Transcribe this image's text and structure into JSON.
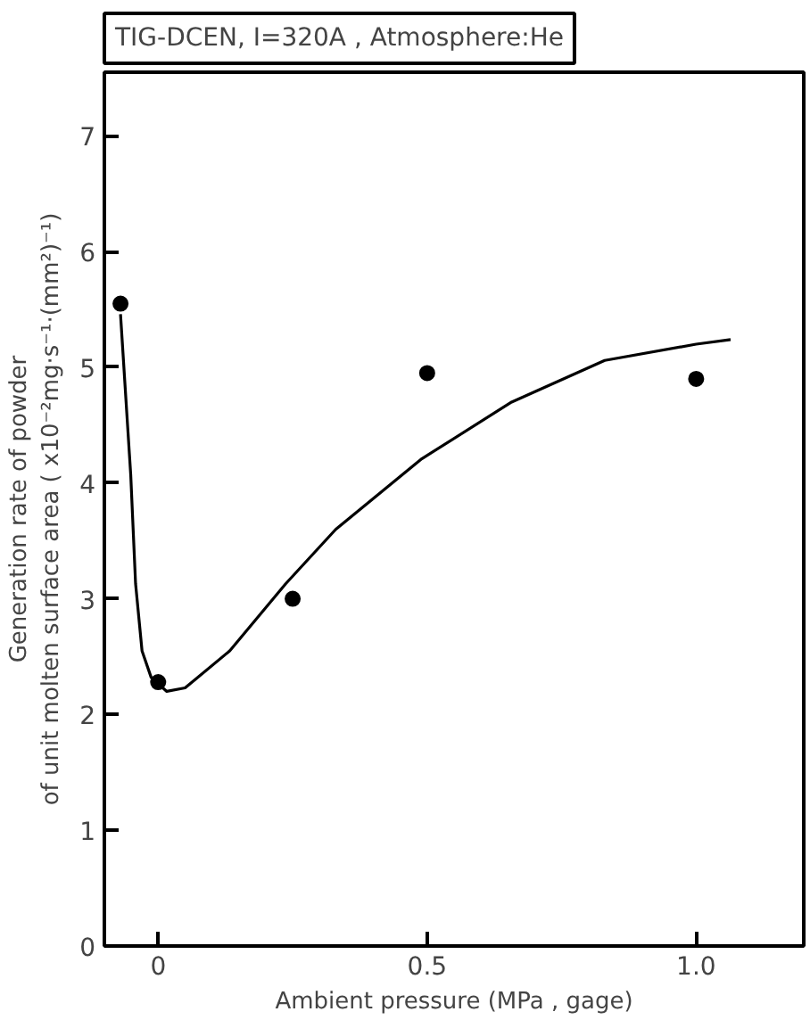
{
  "chart_data": {
    "type": "scatter",
    "title": "TIG-DCEN, I=320A , Atmosphere:He",
    "xlabel": "Ambient pressure (MPa , gage)",
    "ylabel": "Generation rate of powder\nof unit molten surface area ( x10⁻²mg·s⁻¹·(mm²)⁻¹)",
    "xlim": [
      -0.1,
      1.2
    ],
    "ylim": [
      0,
      7.55
    ],
    "xticks": [
      0,
      {
        "value": 0.5,
        "label": "0.5"
      },
      {
        "value": 1.0,
        "label": "1.0"
      }
    ],
    "yticks": [
      0,
      1,
      2,
      3,
      4,
      5,
      6,
      7
    ],
    "grid": false,
    "marker": "circle",
    "series": [
      {
        "color": "#000000",
        "x": [
          -0.07,
          0,
          0.25,
          0.5,
          1.0
        ],
        "values": [
          5.55,
          2.28,
          3.0,
          4.95,
          4.9
        ]
      },
      {
        "type": "line",
        "color": "#000000",
        "marker": "none",
        "line_style": "solid",
        "x": [
          -0.07,
          -0.051,
          -0.042,
          -0.03,
          -0.013,
          0.016,
          0.05,
          0.133,
          0.237,
          0.33,
          0.49,
          0.657,
          0.83,
          1.0,
          1.064
        ],
        "values": [
          5.46,
          4.07,
          3.13,
          2.55,
          2.32,
          2.2,
          2.23,
          2.55,
          3.13,
          3.6,
          4.21,
          4.7,
          5.06,
          5.2,
          5.24
        ]
      }
    ]
  }
}
